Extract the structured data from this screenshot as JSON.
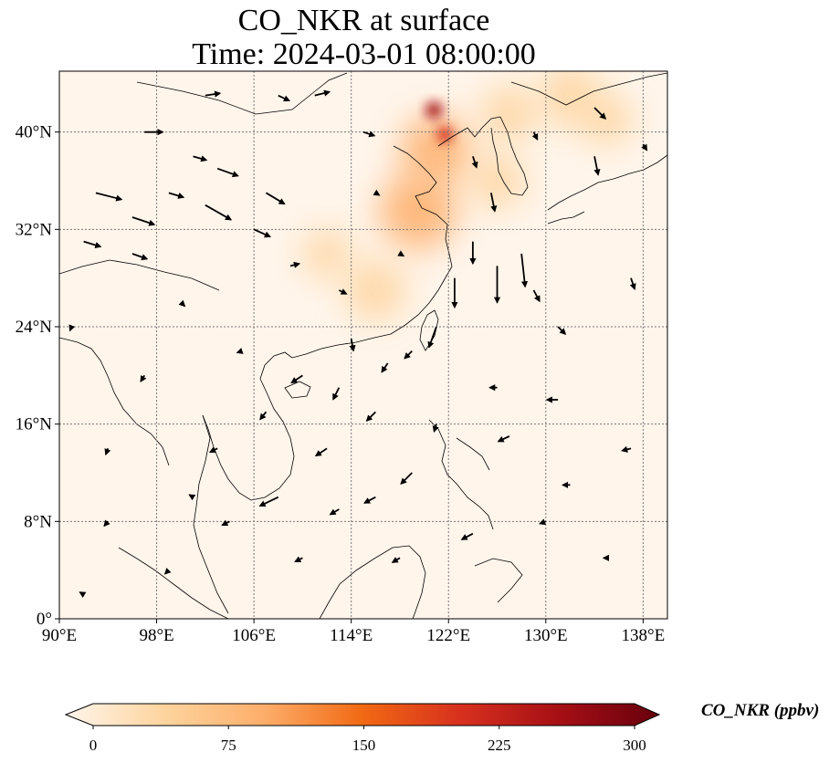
{
  "title": {
    "line1": "CO_NKR at surface",
    "line2": "Time: 2024-03-01 08:00:00"
  },
  "map": {
    "extent": {
      "lon": [
        90,
        140
      ],
      "lat": [
        0,
        45
      ]
    },
    "lon_ticks": [
      {
        "value": 90,
        "label": "90°E"
      },
      {
        "value": 98,
        "label": "98°E"
      },
      {
        "value": 106,
        "label": "106°E"
      },
      {
        "value": 114,
        "label": "114°E"
      },
      {
        "value": 122,
        "label": "122°E"
      },
      {
        "value": 130,
        "label": "130°E"
      },
      {
        "value": 138,
        "label": "138°E"
      }
    ],
    "lat_ticks": [
      {
        "value": 0,
        "label": "0°"
      },
      {
        "value": 8,
        "label": "8°N"
      },
      {
        "value": 16,
        "label": "16°N"
      },
      {
        "value": 24,
        "label": "24°N"
      },
      {
        "value": 32,
        "label": "32°N"
      },
      {
        "value": 40,
        "label": "40°N"
      }
    ],
    "gridlines": true,
    "background_color": "#fff5eb"
  },
  "colorbar": {
    "label": "CO_NKR (ppbv)",
    "min": 0,
    "max": 300,
    "ticks": [
      {
        "value": 0,
        "label": "0"
      },
      {
        "value": 75,
        "label": "75"
      },
      {
        "value": 150,
        "label": "150"
      },
      {
        "value": 225,
        "label": "225"
      },
      {
        "value": 300,
        "label": "300"
      }
    ],
    "colors": [
      "#fff5eb",
      "#fdd49e",
      "#fdae6b",
      "#f16913",
      "#d7301f",
      "#a50f15",
      "#67000d"
    ]
  },
  "concentration_areas": [
    {
      "lon": 119.5,
      "lat": 33.5,
      "value": 110
    },
    {
      "lon": 121.0,
      "lat": 38.5,
      "value": 95
    },
    {
      "lon": 120.8,
      "lat": 41.8,
      "value": 260
    },
    {
      "lon": 121.7,
      "lat": 39.8,
      "value": 190
    },
    {
      "lon": 116.0,
      "lat": 27.0,
      "value": 70
    },
    {
      "lon": 112.0,
      "lat": 30.0,
      "value": 40
    },
    {
      "lon": 132.0,
      "lat": 43.0,
      "value": 70
    },
    {
      "lon": 127.0,
      "lat": 41.5,
      "value": 60
    },
    {
      "lon": 126.0,
      "lat": 36.0,
      "value": 55
    },
    {
      "lon": 135.0,
      "lat": 41.0,
      "value": 45
    }
  ],
  "wind_vectors": [
    {
      "lon": 93,
      "lat": 35,
      "u": 3.5,
      "v": -0.9
    },
    {
      "lon": 96,
      "lat": 33,
      "u": 3.0,
      "v": -1.0
    },
    {
      "lon": 99,
      "lat": 35,
      "u": 2.0,
      "v": -0.6
    },
    {
      "lon": 102,
      "lat": 34,
      "u": 3.5,
      "v": -2.0
    },
    {
      "lon": 103,
      "lat": 37,
      "u": 2.8,
      "v": -1.0
    },
    {
      "lon": 107,
      "lat": 35,
      "u": 2.5,
      "v": -1.5
    },
    {
      "lon": 106,
      "lat": 32,
      "u": 2.2,
      "v": -1.0
    },
    {
      "lon": 96,
      "lat": 30,
      "u": 2.0,
      "v": -0.7
    },
    {
      "lon": 92,
      "lat": 31,
      "u": 2.3,
      "v": -0.7
    },
    {
      "lon": 101,
      "lat": 38,
      "u": 1.8,
      "v": -0.5
    },
    {
      "lon": 97,
      "lat": 40,
      "u": 2.5,
      "v": 0.0
    },
    {
      "lon": 102,
      "lat": 43,
      "u": 2.0,
      "v": 0.3
    },
    {
      "lon": 111,
      "lat": 43,
      "u": 2.0,
      "v": 0.5
    },
    {
      "lon": 108,
      "lat": 43,
      "u": 1.5,
      "v": -0.7
    },
    {
      "lon": 115,
      "lat": 40,
      "u": 1.5,
      "v": -0.5
    },
    {
      "lon": 109,
      "lat": 29,
      "u": 1.2,
      "v": 0.3
    },
    {
      "lon": 113,
      "lat": 27,
      "u": 1.0,
      "v": -0.5
    },
    {
      "lon": 114,
      "lat": 23,
      "u": 0.3,
      "v": -1.6
    },
    {
      "lon": 117,
      "lat": 21,
      "u": -0.8,
      "v": -1.2
    },
    {
      "lon": 110,
      "lat": 20,
      "u": -1.5,
      "v": -1.0
    },
    {
      "lon": 113,
      "lat": 19,
      "u": -0.8,
      "v": -1.6
    },
    {
      "lon": 116,
      "lat": 17,
      "u": -1.2,
      "v": -1.2
    },
    {
      "lon": 119,
      "lat": 22,
      "u": -1.0,
      "v": -1.0
    },
    {
      "lon": 121,
      "lat": 24,
      "u": -1.0,
      "v": -2.8
    },
    {
      "lon": 122.5,
      "lat": 28,
      "u": 0.0,
      "v": -4.0
    },
    {
      "lon": 124,
      "lat": 31,
      "u": 0.0,
      "v": -3.0
    },
    {
      "lon": 126,
      "lat": 29,
      "u": 0.0,
      "v": -5.0
    },
    {
      "lon": 128,
      "lat": 30,
      "u": 0.5,
      "v": -4.5
    },
    {
      "lon": 129,
      "lat": 27,
      "u": 0.8,
      "v": -1.5
    },
    {
      "lon": 125.5,
      "lat": 35,
      "u": 0.5,
      "v": -2.5
    },
    {
      "lon": 131,
      "lat": 24,
      "u": 1.0,
      "v": -1.0
    },
    {
      "lon": 124,
      "lat": 38,
      "u": 0.5,
      "v": -1.5
    },
    {
      "lon": 134,
      "lat": 38,
      "u": 0.5,
      "v": -2.5
    },
    {
      "lon": 134,
      "lat": 42,
      "u": 1.5,
      "v": -1.5
    },
    {
      "lon": 137,
      "lat": 28,
      "u": 0.5,
      "v": -1.5
    },
    {
      "lon": 119,
      "lat": 12,
      "u": -1.5,
      "v": -1.5
    },
    {
      "lon": 112,
      "lat": 14,
      "u": -1.5,
      "v": -1.0
    },
    {
      "lon": 108,
      "lat": 10,
      "u": -2.5,
      "v": -1.2
    },
    {
      "lon": 103,
      "lat": 14,
      "u": -1.0,
      "v": -0.5
    },
    {
      "lon": 104,
      "lat": 8,
      "u": -1.0,
      "v": -0.5
    },
    {
      "lon": 113,
      "lat": 9,
      "u": -1.2,
      "v": -0.7
    },
    {
      "lon": 116,
      "lat": 10,
      "u": -1.5,
      "v": -0.8
    },
    {
      "lon": 118,
      "lat": 5,
      "u": -1.0,
      "v": -0.6
    },
    {
      "lon": 110,
      "lat": 5,
      "u": -1.0,
      "v": -0.5
    },
    {
      "lon": 124,
      "lat": 7,
      "u": -1.5,
      "v": -0.8
    },
    {
      "lon": 127,
      "lat": 15,
      "u": -1.5,
      "v": -0.7
    },
    {
      "lon": 131,
      "lat": 18,
      "u": -1.5,
      "v": 0.0
    },
    {
      "lon": 137,
      "lat": 14,
      "u": -1.2,
      "v": -0.3
    },
    {
      "lon": 132,
      "lat": 11,
      "u": -1.0,
      "v": 0.0
    },
    {
      "lon": 126,
      "lat": 19,
      "u": -1.0,
      "v": 0.0
    },
    {
      "lon": 97,
      "lat": 20,
      "u": -0.5,
      "v": -0.8
    },
    {
      "lon": 94,
      "lat": 14,
      "u": -0.3,
      "v": -0.8
    },
    {
      "lon": 94,
      "lat": 8,
      "u": -0.5,
      "v": -0.6
    },
    {
      "lon": 99,
      "lat": 4,
      "u": -0.5,
      "v": -0.5
    },
    {
      "lon": 91,
      "lat": 24,
      "u": -0.2,
      "v": -0.5
    },
    {
      "lon": 100,
      "lat": 26,
      "u": 0.5,
      "v": -0.5
    },
    {
      "lon": 105,
      "lat": 22,
      "u": -0.6,
      "v": -0.2
    },
    {
      "lon": 107,
      "lat": 17,
      "u": -0.8,
      "v": -1.0
    },
    {
      "lon": 101,
      "lat": 10,
      "u": -0.5,
      "v": 0.3
    },
    {
      "lon": 130,
      "lat": 8,
      "u": -0.8,
      "v": -0.3
    },
    {
      "lon": 135,
      "lat": 5,
      "u": -0.4,
      "v": 0.0
    },
    {
      "lon": 121,
      "lat": 16,
      "u": -0.3,
      "v": -1.0
    },
    {
      "lon": 118,
      "lat": 30,
      "u": 0.5,
      "v": -0.3
    },
    {
      "lon": 116,
      "lat": 35,
      "u": 0.5,
      "v": -0.3
    },
    {
      "lon": 129,
      "lat": 40,
      "u": 0.5,
      "v": -1.0
    },
    {
      "lon": 138,
      "lat": 39,
      "u": 0.5,
      "v": -0.8
    },
    {
      "lon": 92,
      "lat": 2,
      "u": -0.5,
      "v": 0.3
    }
  ]
}
